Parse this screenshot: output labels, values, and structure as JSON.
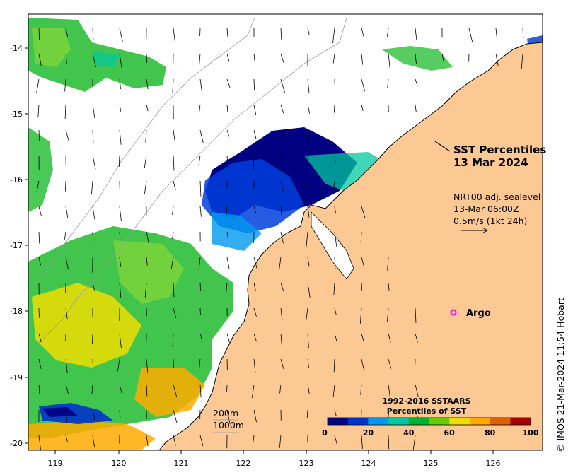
{
  "map": {
    "title_line1": "SST Percentiles",
    "title_line2": "13 Mar 2024",
    "current_note_line1": "NRT00 adj. sealevel",
    "current_note_line2": "13-Mar 06:00Z",
    "current_note_line3": "0.5m/s (1kt 24h)",
    "argo_label": "Argo",
    "depth_label_1": "200m",
    "depth_label_2": "1000m",
    "credit": "© IMOS 21-Mar-2024 11:54 Hobart",
    "colorbar_title_line1": "1992-2016 SSTAARS",
    "colorbar_title_line2": "Percentiles of SST",
    "colorbar_ticks": [
      "0",
      "20",
      "40",
      "60",
      "80",
      "100"
    ],
    "colorbar_colors": [
      "#000080",
      "#0033cc",
      "#0099ee",
      "#00c8a0",
      "#00b030",
      "#66cc00",
      "#eedd00",
      "#ffaa00",
      "#e06000",
      "#aa0000"
    ],
    "lon_ticks": [
      "119",
      "120",
      "121",
      "122",
      "123",
      "124",
      "125",
      "126"
    ],
    "lat_ticks": [
      "-14",
      "-15",
      "-16",
      "-17",
      "-18",
      "-19",
      "-20"
    ],
    "land_color": "#fcc894",
    "argo_color": "#ff00ff"
  }
}
